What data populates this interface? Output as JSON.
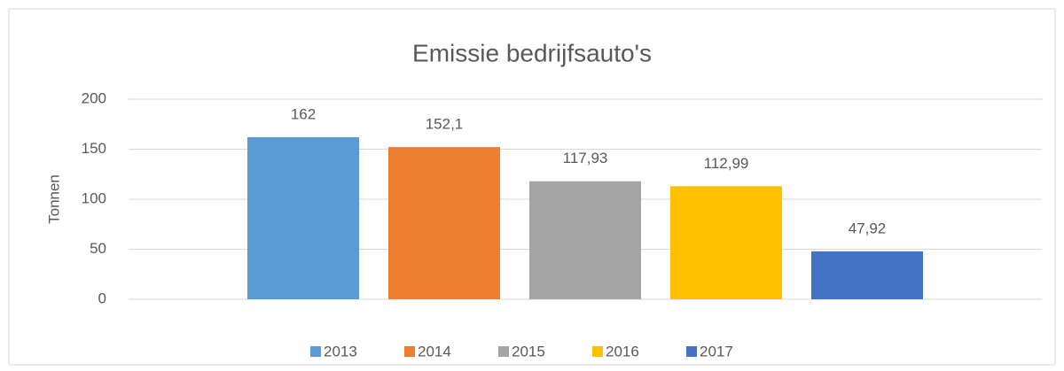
{
  "chart_data": {
    "type": "bar",
    "title": "Emissie bedrijfsauto's",
    "y_label": "Tonnen",
    "categories": [
      null
    ],
    "series": [
      {
        "name": "2013",
        "color": "#5b9bd5",
        "values": [
          162
        ]
      },
      {
        "name": "2014",
        "color": "#ed7d31",
        "values": [
          152.1
        ],
        "value_labels": [
          "152,1"
        ]
      },
      {
        "name": "2015",
        "color": "#a5a5a5",
        "values": [
          117.93
        ],
        "value_labels": [
          "117,93"
        ]
      },
      {
        "name": "2016",
        "color": "#ffc000",
        "values": [
          112.99
        ],
        "value_labels": [
          "112,99"
        ]
      },
      {
        "name": "2017",
        "color": "#4472c4",
        "values": [
          47.92
        ],
        "value_labels": [
          "47,92"
        ]
      }
    ],
    "ylim": [
      0,
      200
    ],
    "yticks": [
      0,
      50,
      100,
      150,
      200
    ],
    "grid": true,
    "legend": "bottom"
  }
}
